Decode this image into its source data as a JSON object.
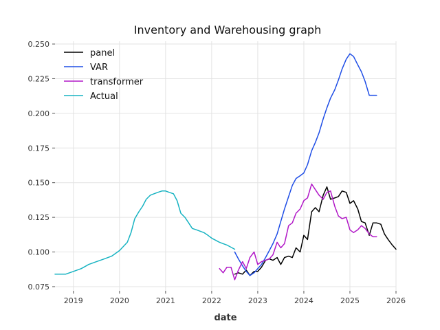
{
  "chart_data": {
    "type": "line",
    "title": "Inventory and Warehousing graph",
    "xlabel": "date",
    "ylabel": "",
    "xlim": [
      2018.6,
      2026.0
    ],
    "ylim": [
      0.072,
      0.252
    ],
    "x_ticks": [
      2019,
      2020,
      2021,
      2022,
      2023,
      2024,
      2025,
      2026
    ],
    "x_tick_labels": [
      "2019",
      "2020",
      "2021",
      "2022",
      "2023",
      "2024",
      "2025",
      "2026"
    ],
    "y_ticks": [
      0.075,
      0.1,
      0.125,
      0.15,
      0.175,
      0.2,
      0.225,
      0.25
    ],
    "y_tick_labels": [
      "0.075",
      "0.100",
      "0.125",
      "0.150",
      "0.175",
      "0.200",
      "0.225",
      "0.250"
    ],
    "grid": true,
    "legend_position": "top-left",
    "series": [
      {
        "name": "panel",
        "color": "#000000",
        "x": [
          2022.5,
          2022.58,
          2022.67,
          2022.75,
          2022.83,
          2022.92,
          2023.0,
          2023.08,
          2023.17,
          2023.25,
          2023.33,
          2023.42,
          2023.5,
          2023.58,
          2023.67,
          2023.75,
          2023.83,
          2023.92,
          2024.0,
          2024.08,
          2024.17,
          2024.25,
          2024.33,
          2024.42,
          2024.5,
          2024.58,
          2024.67,
          2024.75,
          2024.83,
          2024.92,
          2025.0,
          2025.08,
          2025.17,
          2025.25,
          2025.33,
          2025.42,
          2025.5,
          2025.58,
          2025.67,
          2025.75,
          2025.83,
          2025.92,
          2026.0
        ],
        "y": [
          0.084,
          0.085,
          0.084,
          0.087,
          0.083,
          0.086,
          0.086,
          0.089,
          0.094,
          0.095,
          0.094,
          0.096,
          0.091,
          0.096,
          0.097,
          0.096,
          0.103,
          0.1,
          0.112,
          0.109,
          0.129,
          0.132,
          0.129,
          0.141,
          0.147,
          0.138,
          0.139,
          0.14,
          0.144,
          0.143,
          0.135,
          0.137,
          0.131,
          0.122,
          0.121,
          0.112,
          0.121,
          0.121,
          0.12,
          0.113,
          0.109,
          0.105,
          0.102
        ]
      },
      {
        "name": "VAR",
        "color": "#1f4ee6",
        "x": [
          2022.5,
          2022.58,
          2022.67,
          2022.75,
          2022.83,
          2022.92,
          2023.0,
          2023.08,
          2023.17,
          2023.25,
          2023.33,
          2023.42,
          2023.5,
          2023.58,
          2023.67,
          2023.75,
          2023.83,
          2023.92,
          2024.0,
          2024.08,
          2024.17,
          2024.25,
          2024.33,
          2024.42,
          2024.5,
          2024.58,
          2024.67,
          2024.75,
          2024.83,
          2024.92,
          2025.0,
          2025.08,
          2025.17,
          2025.25,
          2025.33,
          2025.42,
          2025.5,
          2025.58
        ],
        "y": [
          0.1,
          0.095,
          0.09,
          0.086,
          0.083,
          0.085,
          0.088,
          0.091,
          0.096,
          0.101,
          0.106,
          0.113,
          0.122,
          0.131,
          0.14,
          0.148,
          0.153,
          0.155,
          0.157,
          0.163,
          0.173,
          0.179,
          0.186,
          0.196,
          0.204,
          0.211,
          0.217,
          0.224,
          0.232,
          0.239,
          0.243,
          0.241,
          0.235,
          0.23,
          0.223,
          0.213,
          0.213,
          0.213
        ]
      },
      {
        "name": "transformer",
        "color": "#b117c7",
        "x": [
          2022.17,
          2022.25,
          2022.33,
          2022.42,
          2022.5,
          2022.58,
          2022.67,
          2022.75,
          2022.83,
          2022.92,
          2023.0,
          2023.08,
          2023.17,
          2023.25,
          2023.33,
          2023.42,
          2023.5,
          2023.58,
          2023.67,
          2023.75,
          2023.83,
          2023.92,
          2024.0,
          2024.08,
          2024.17,
          2024.25,
          2024.33,
          2024.42,
          2024.5,
          2024.58,
          2024.67,
          2024.75,
          2024.83,
          2024.92,
          2025.0,
          2025.08,
          2025.17,
          2025.25,
          2025.33,
          2025.42,
          2025.5,
          2025.58
        ],
        "y": [
          0.088,
          0.085,
          0.089,
          0.089,
          0.08,
          0.087,
          0.093,
          0.088,
          0.096,
          0.1,
          0.091,
          0.093,
          0.094,
          0.095,
          0.098,
          0.107,
          0.103,
          0.106,
          0.119,
          0.121,
          0.128,
          0.131,
          0.137,
          0.139,
          0.149,
          0.145,
          0.141,
          0.138,
          0.143,
          0.144,
          0.133,
          0.126,
          0.124,
          0.125,
          0.116,
          0.114,
          0.116,
          0.119,
          0.117,
          0.113,
          0.111,
          0.111
        ]
      },
      {
        "name": "Actual",
        "color": "#17b3c2",
        "x": [
          2018.6,
          2018.83,
          2019.0,
          2019.17,
          2019.33,
          2019.5,
          2019.67,
          2019.83,
          2020.0,
          2020.17,
          2020.25,
          2020.33,
          2020.42,
          2020.5,
          2020.58,
          2020.67,
          2020.75,
          2020.83,
          2020.92,
          2021.0,
          2021.08,
          2021.17,
          2021.25,
          2021.33,
          2021.42,
          2021.5,
          2021.58,
          2021.67,
          2021.75,
          2021.83,
          2021.92,
          2022.0,
          2022.17,
          2022.33,
          2022.5
        ],
        "y": [
          0.084,
          0.084,
          0.086,
          0.088,
          0.091,
          0.093,
          0.095,
          0.097,
          0.101,
          0.107,
          0.114,
          0.124,
          0.129,
          0.133,
          0.138,
          0.141,
          0.142,
          0.143,
          0.144,
          0.144,
          0.143,
          0.142,
          0.137,
          0.128,
          0.125,
          0.121,
          0.117,
          0.116,
          0.115,
          0.114,
          0.112,
          0.11,
          0.107,
          0.105,
          0.102
        ]
      }
    ]
  }
}
